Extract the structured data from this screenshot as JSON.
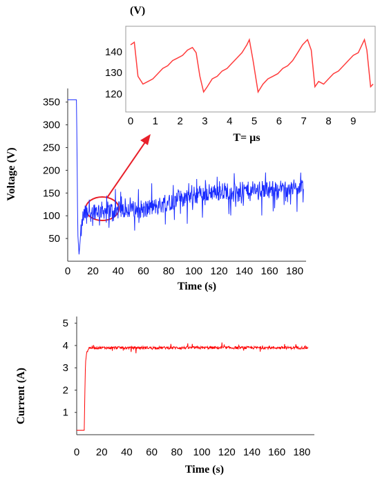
{
  "chart_data": [
    {
      "type": "line",
      "name": "inset",
      "title": "",
      "xlabel": "T= µs",
      "ylabel": "(V)",
      "xlim": [
        0,
        9.8
      ],
      "ylim": [
        117,
        145
      ],
      "xticks": [
        0,
        1,
        2,
        3,
        4,
        5,
        6,
        7,
        8,
        9
      ],
      "yticks": [
        120,
        130,
        140
      ],
      "color": "#ff3b3b",
      "series": [
        {
          "x": [
            0.0,
            0.15,
            0.3,
            0.5,
            0.7,
            0.9,
            1.1,
            1.3,
            1.5,
            1.7,
            1.9,
            2.1,
            2.3,
            2.5,
            2.65,
            2.8,
            2.95,
            3.1,
            3.3,
            3.5,
            3.7,
            3.9,
            4.1,
            4.3,
            4.5,
            4.7,
            4.8,
            4.95,
            5.15,
            5.35,
            5.55,
            5.75,
            5.95,
            6.15,
            6.35,
            6.55,
            6.75,
            6.95,
            7.15,
            7.3,
            7.45,
            7.6,
            7.8,
            8.0,
            8.2,
            8.4,
            8.6,
            8.8,
            9.0,
            9.2,
            9.35,
            9.45,
            9.55,
            9.7,
            9.8
          ],
          "y": [
            140,
            141,
            128,
            125,
            126,
            127,
            129,
            131,
            132,
            134,
            135,
            136,
            138,
            139,
            137,
            128,
            122,
            124,
            127,
            128,
            130,
            131,
            133,
            135,
            137,
            140,
            142,
            134,
            122,
            125,
            127,
            128,
            129,
            131,
            132,
            134,
            137,
            140,
            142,
            138,
            124,
            126,
            125,
            127,
            129,
            130,
            132,
            134,
            136,
            137,
            140,
            142,
            138,
            124,
            125
          ]
        }
      ]
    },
    {
      "type": "line",
      "name": "voltage",
      "title": "",
      "xlabel": "Time (s)",
      "ylabel": "Voltage (V)",
      "xlim": [
        0,
        189
      ],
      "ylim": [
        0,
        380
      ],
      "xticks": [
        0,
        20,
        40,
        60,
        80,
        100,
        120,
        140,
        160,
        180
      ],
      "yticks": [
        50,
        100,
        150,
        200,
        250,
        300,
        350
      ],
      "color": "#1a2cff",
      "anchors_x": [
        0,
        6,
        7,
        8,
        9,
        10,
        12,
        15,
        20,
        30,
        40,
        50,
        60,
        70,
        80,
        90,
        100,
        110,
        120,
        130,
        140,
        150,
        160,
        170,
        180,
        187
      ],
      "anchors_y": [
        355,
        355,
        355,
        60,
        15,
        50,
        95,
        110,
        112,
        112,
        112,
        114,
        115,
        120,
        130,
        138,
        145,
        150,
        155,
        155,
        155,
        157,
        158,
        160,
        160,
        160
      ],
      "noise_amplitude": 28
    },
    {
      "type": "line",
      "name": "current",
      "title": "",
      "xlabel": "Time (s)",
      "ylabel": "Current (A)",
      "xlim": [
        0,
        190
      ],
      "ylim": [
        0,
        5.3
      ],
      "xticks": [
        0,
        20,
        40,
        60,
        80,
        100,
        120,
        140,
        160,
        180
      ],
      "yticks": [
        1,
        2,
        3,
        4,
        5
      ],
      "color": "#ff0000",
      "anchors_x": [
        0,
        5,
        6,
        7,
        8,
        10,
        185
      ],
      "anchors_y": [
        0.2,
        0.2,
        0.2,
        3.2,
        3.7,
        3.9,
        3.9
      ],
      "noise_amplitude": 0.12
    }
  ],
  "annotation": {
    "highlight_color": "#e8202a"
  }
}
